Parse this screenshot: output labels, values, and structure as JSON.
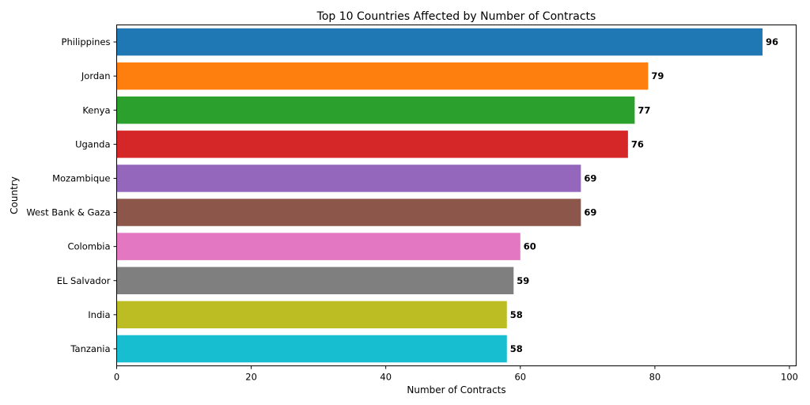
{
  "chart_data": {
    "type": "bar",
    "orientation": "horizontal",
    "title": "Top 10 Countries Affected by Number of Contracts",
    "xlabel": "Number of Contracts",
    "ylabel": "Country",
    "xlim": [
      0,
      101
    ],
    "xticks": [
      0,
      20,
      40,
      60,
      80,
      100
    ],
    "grid": false,
    "categories": [
      "Philippines",
      "Jordan",
      "Kenya",
      "Uganda",
      "Mozambique",
      "West Bank & Gaza",
      "Colombia",
      "EL Salvador",
      "India",
      "Tanzania"
    ],
    "values": [
      96,
      79,
      77,
      76,
      69,
      69,
      60,
      59,
      58,
      58
    ],
    "colors": [
      "#1f77b4",
      "#ff7f0e",
      "#2ca02c",
      "#d62728",
      "#9467bd",
      "#8c564b",
      "#e377c2",
      "#7f7f7f",
      "#bcbd22",
      "#17becf"
    ]
  }
}
